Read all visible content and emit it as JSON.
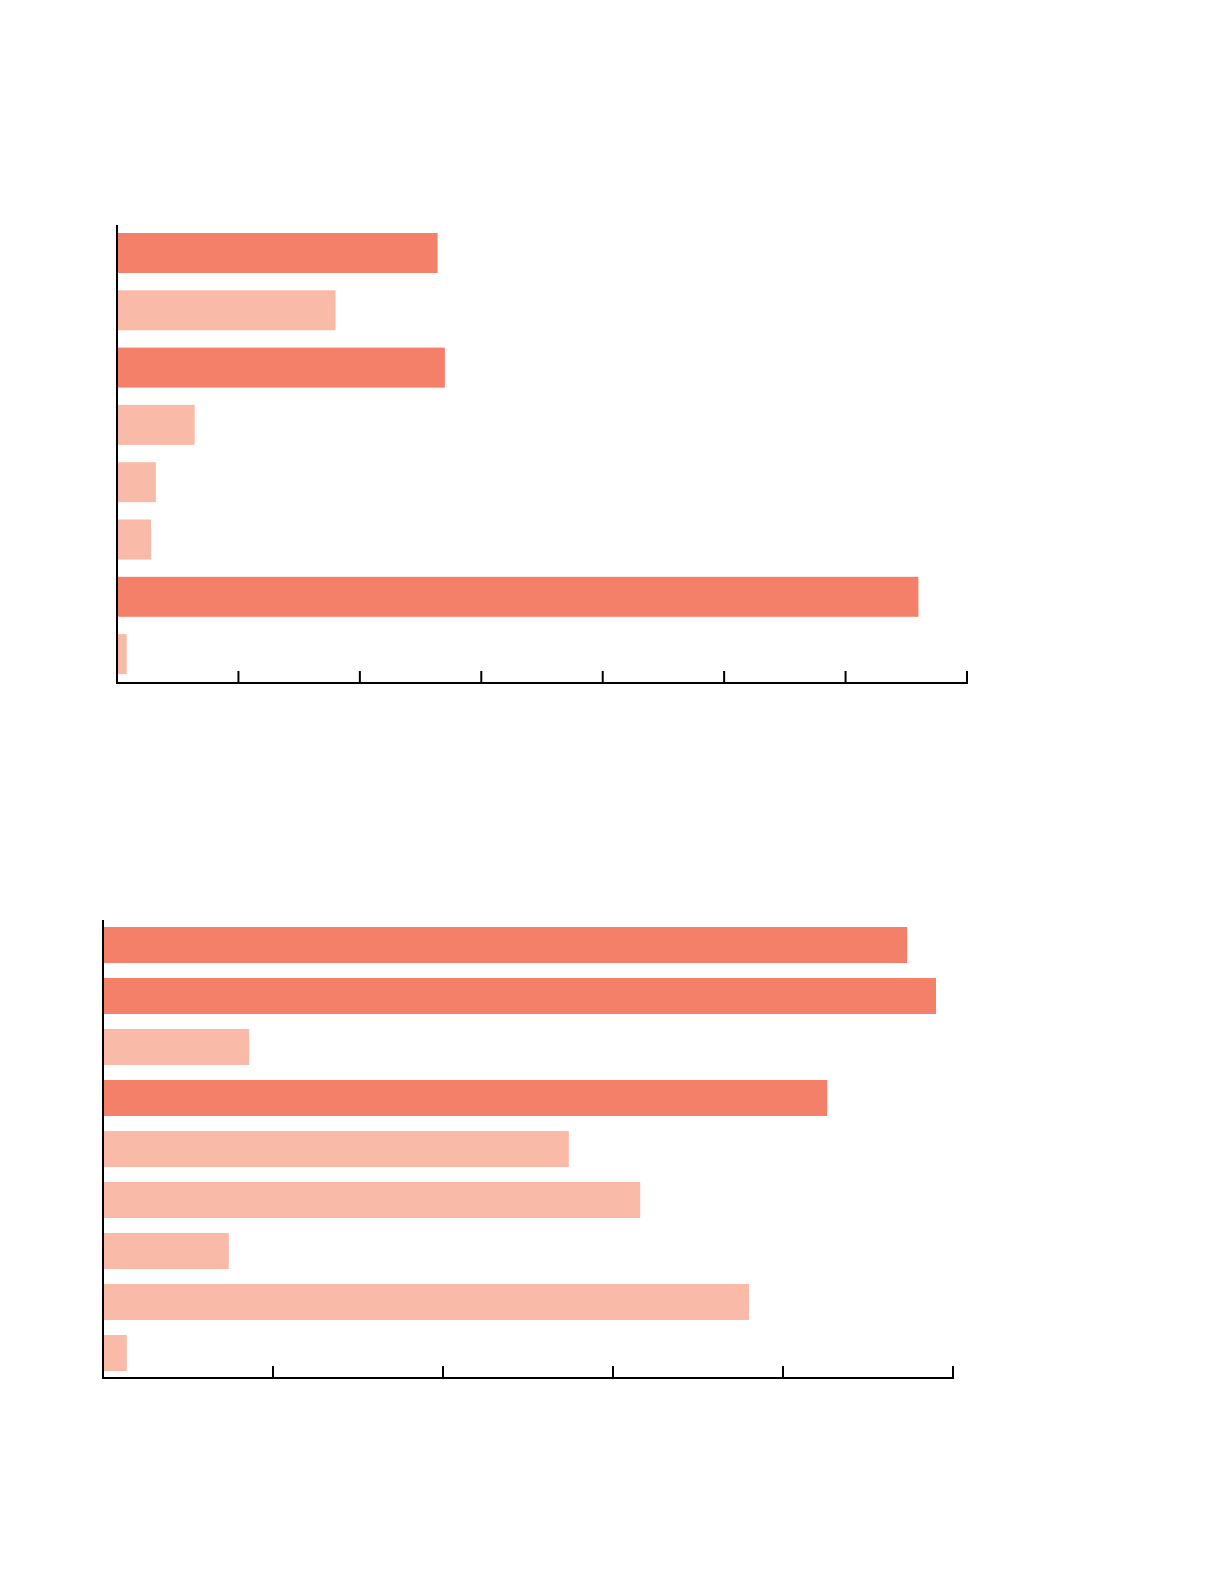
{
  "chart_data": [
    {
      "type": "barh",
      "values": [
        2.64,
        1.8,
        2.7,
        0.64,
        0.32,
        0.28,
        6.6,
        0.08
      ],
      "colors": [
        "#f4806a",
        "#f9bba8",
        "#f4806a",
        "#f9bba8",
        "#f9bba8",
        "#f9bba8",
        "#f4806a",
        "#f9bba8"
      ],
      "xlim": [
        0,
        7
      ],
      "xticks": [
        0,
        1,
        2,
        3,
        4,
        5,
        6,
        7
      ]
    },
    {
      "type": "barh",
      "values": [
        4.73,
        4.9,
        0.86,
        4.26,
        2.74,
        3.16,
        0.74,
        3.8,
        0.14
      ],
      "colors": [
        "#f4806a",
        "#f4806a",
        "#f9bba8",
        "#f4806a",
        "#f9bba8",
        "#f9bba8",
        "#f9bba8",
        "#f9bba8",
        "#f9bba8"
      ],
      "xlim": [
        0,
        5
      ],
      "xticks": [
        0,
        1,
        2,
        3,
        4,
        5
      ]
    }
  ]
}
